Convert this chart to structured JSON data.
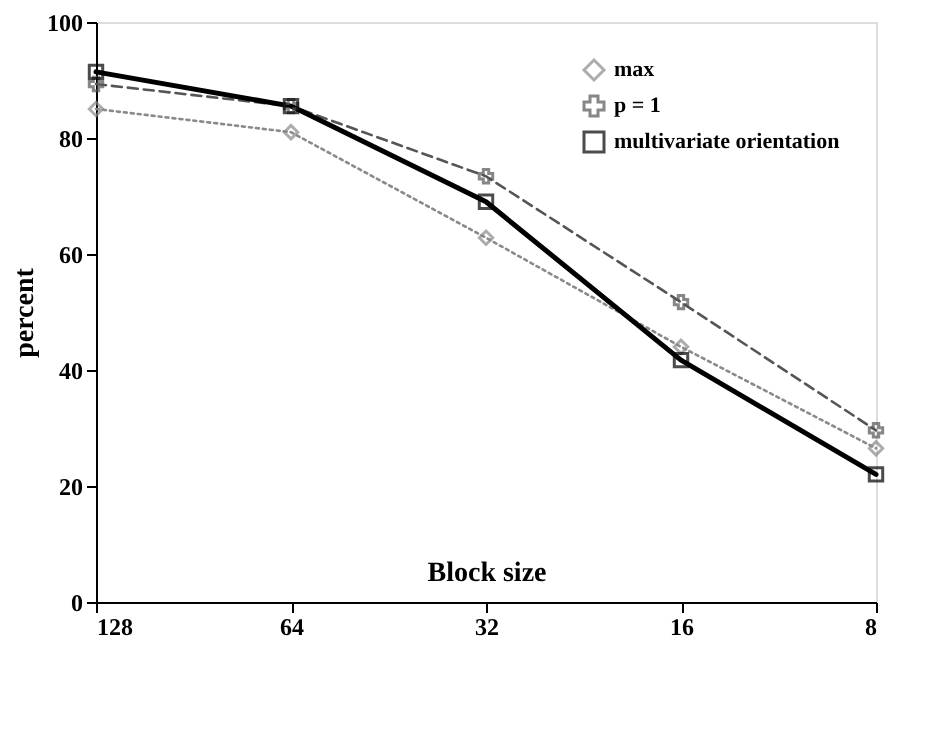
{
  "chart_data": {
    "type": "line",
    "xlabel": "Block size",
    "ylabel": "percent",
    "categories": [
      "128",
      "64",
      "32",
      "16",
      "8"
    ],
    "series": [
      {
        "name": "max",
        "color": "#8a8a8a",
        "marker": "diamond",
        "line_style": "dotted",
        "values": [
          85,
          81,
          62.8,
          44,
          26.5
        ]
      },
      {
        "name": "p = 1",
        "color": "#555555",
        "marker": "cross",
        "line_style": "dashed",
        "values": [
          89.3,
          85.5,
          73.4,
          51.7,
          29.6
        ]
      },
      {
        "name": "multivariate orientation",
        "color": "#000000",
        "marker": "square",
        "line_style": "solid",
        "values": [
          91.4,
          85.5,
          69,
          41.7,
          22
        ]
      }
    ],
    "ylim": [
      0,
      100
    ],
    "yticks": [
      0,
      20,
      40,
      60,
      80,
      100
    ],
    "grid": false,
    "legend": "top right"
  }
}
